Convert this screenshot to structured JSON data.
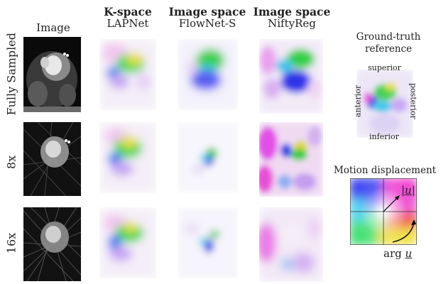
{
  "columns": [
    {
      "id": "image",
      "title": "",
      "subtitle": "Image"
    },
    {
      "id": "lapnet",
      "title": "K-space",
      "subtitle": "LAPNet"
    },
    {
      "id": "flownet",
      "title": "Image space",
      "subtitle": "FlowNet-S"
    },
    {
      "id": "niftyreg",
      "title": "Image space",
      "subtitle": "NiftyReg"
    }
  ],
  "rows": [
    {
      "id": "full",
      "label": "Fully Sampled"
    },
    {
      "id": "8x",
      "label": "8x"
    },
    {
      "id": "16x",
      "label": "16x"
    }
  ],
  "ground_truth": {
    "title_line1": "Ground-truth",
    "title_line2": "reference",
    "superior": "superior",
    "inferior": "inferior",
    "anterior": "anterior",
    "posterior": "posterior"
  },
  "legend": {
    "title": "Motion displacement",
    "magnitude": "|u|",
    "angle_prefix": "arg",
    "angle_var": "u"
  },
  "colors": {
    "green": "#33cc33",
    "blue": "#2244ee",
    "magenta": "#ee44ee",
    "cyan": "#44ccee",
    "yellow": "#dddd33",
    "red": "#ee3333"
  }
}
